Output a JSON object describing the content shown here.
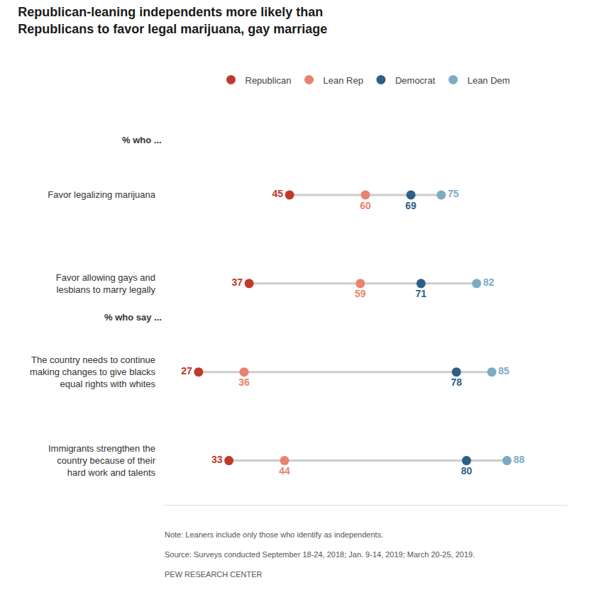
{
  "chart_data": {
    "type": "dot",
    "title": "Republican-leaning independents more likely than\nRepublicans to favor legal marijuana, gay marriage",
    "categories": [
      "Favor legalizing marijuana",
      "Favor allowing gays and\nlesbians to marry legally",
      "The country needs to continue\nmaking changes to give blacks\nequal rights with whites",
      "Immigrants strengthen the\ncountry because of their\nhard work and talents"
    ],
    "series": [
      {
        "name": "Republican",
        "color": "#c0392b",
        "values": [
          45,
          37,
          27,
          33
        ]
      },
      {
        "name": "Lean Rep",
        "color": "#e8836e",
        "values": [
          60,
          59,
          36,
          44
        ]
      },
      {
        "name": "Democrat",
        "color": "#2e5f85",
        "values": [
          69,
          71,
          78,
          80
        ]
      },
      {
        "name": "Lean Dem",
        "color": "#7bacc4",
        "values": [
          75,
          82,
          85,
          88
        ]
      }
    ],
    "xlim": [
      20,
      100
    ],
    "data_labels": true,
    "tick_labels": "y",
    "grid": false,
    "legend": "top",
    "annotations": [
      {
        "text": "% who ...",
        "category": "Favor legalizing marijuana"
      },
      {
        "text": "% who say ...",
        "category": "The country needs to continue\nmaking changes to give blacks\nequal rights with whites"
      },
      {
        "text": "Note: Leaners include only those who identify as independents."
      },
      {
        "text": "Source: Surveys conducted September 18-24, 2018; Jan. 9-14, 2019; March 20-25, 2019."
      },
      {
        "text": "PEW RESEARCH CENTER"
      }
    ]
  }
}
